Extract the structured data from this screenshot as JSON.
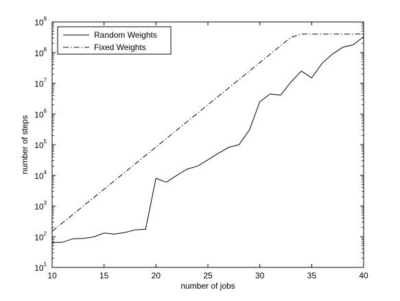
{
  "chart_data": {
    "type": "line",
    "title": "",
    "xlabel": "number of jobs",
    "ylabel": "number of steps",
    "xlim": [
      10,
      40
    ],
    "ylim": [
      10,
      1000000000
    ],
    "yscale": "log",
    "grid": false,
    "legend_position": "top-left",
    "x_ticks": [
      "10",
      "15",
      "20",
      "25",
      "30",
      "35",
      "40"
    ],
    "y_ticks": [
      {
        "base": "10",
        "exp": "1"
      },
      {
        "base": "10",
        "exp": "2"
      },
      {
        "base": "10",
        "exp": "3"
      },
      {
        "base": "10",
        "exp": "4"
      },
      {
        "base": "10",
        "exp": "5"
      },
      {
        "base": "10",
        "exp": "6"
      },
      {
        "base": "10",
        "exp": "7"
      },
      {
        "base": "10",
        "exp": "8"
      },
      {
        "base": "10",
        "exp": "9"
      }
    ],
    "x": [
      10,
      11,
      12,
      13,
      14,
      15,
      16,
      17,
      18,
      19,
      20,
      21,
      22,
      23,
      24,
      25,
      26,
      27,
      28,
      29,
      30,
      31,
      32,
      33,
      34,
      35,
      36,
      37,
      38,
      39,
      40
    ],
    "series": [
      {
        "name": "Random Weights",
        "style": "solid",
        "color": "#000000",
        "values": [
          65,
          66,
          86,
          88,
          98,
          132,
          122,
          137,
          168,
          175,
          8000,
          6000,
          10000,
          16000,
          20000,
          32000,
          52000,
          82000,
          100000,
          300000,
          2500000,
          4500000,
          4100000,
          11000000,
          25000000,
          15000000,
          45000000,
          90000000,
          150000000,
          180000000,
          330000000
        ]
      },
      {
        "name": "Fixed Weights",
        "style": "dashdot",
        "color": "#000000",
        "values": [
          150,
          283,
          532,
          1000,
          1885,
          3550,
          6680,
          12600,
          23700,
          44600,
          84000,
          158000,
          298000,
          561000,
          1060000,
          2000000,
          3750000,
          7070000,
          13300000,
          25100000,
          47200000,
          88900000,
          167000000,
          315000000,
          400000000,
          400000000,
          400000000,
          400000000,
          400000000,
          400000000,
          400000000
        ]
      }
    ]
  }
}
